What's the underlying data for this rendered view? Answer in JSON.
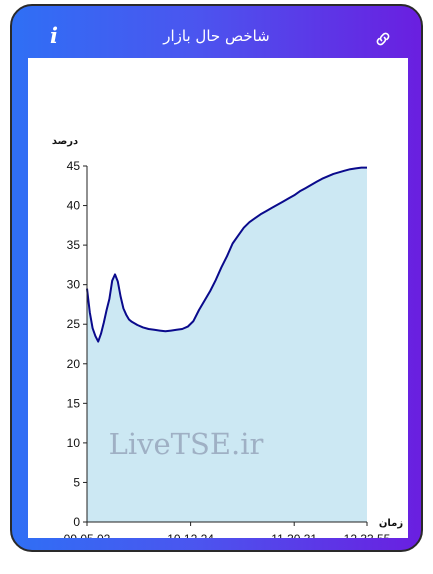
{
  "header": {
    "title": "شاخص حال بازار",
    "info_icon": "info-icon",
    "info_glyph": "i",
    "link_icon": "link-icon"
  },
  "colors": {
    "header_gradient_start": "#2f6ff5",
    "header_gradient_end": "#6a1fe0",
    "line": "#0a0a8c",
    "area_fill": "#cce8f3",
    "axis": "#222222"
  },
  "watermark": "LiveTSE.ir",
  "chart_data": {
    "type": "area",
    "ylabel": "درصد",
    "xlabel": "زمان",
    "ylim": [
      0,
      45
    ],
    "y_ticks": [
      0,
      5,
      10,
      15,
      20,
      25,
      30,
      35,
      40,
      45
    ],
    "x_tick_labels": [
      "09.05.02",
      "10.12.24",
      "11.30.31",
      "12.33.55"
    ],
    "x_tick_positions": [
      0,
      0.37,
      0.74,
      1.0
    ],
    "grid": false,
    "series": [
      {
        "x": [
          0,
          0.01,
          0.02,
          0.03,
          0.04,
          0.05,
          0.06,
          0.07,
          0.08,
          0.09,
          0.1,
          0.11,
          0.12,
          0.13,
          0.14,
          0.15,
          0.16,
          0.17,
          0.18,
          0.2,
          0.22,
          0.24,
          0.26,
          0.28,
          0.3,
          0.32,
          0.34,
          0.36,
          0.38,
          0.4,
          0.42,
          0.44,
          0.46,
          0.48,
          0.5,
          0.52,
          0.54,
          0.56,
          0.58,
          0.6,
          0.62,
          0.64,
          0.66,
          0.68,
          0.7,
          0.72,
          0.74,
          0.76,
          0.78,
          0.8,
          0.82,
          0.84,
          0.86,
          0.88,
          0.9,
          0.92,
          0.94,
          0.96,
          0.98,
          1.0
        ],
        "y": [
          29.5,
          26.5,
          24.5,
          23.5,
          22.8,
          23.8,
          25.2,
          26.8,
          28.2,
          30.5,
          31.3,
          30.4,
          28.5,
          27.0,
          26.2,
          25.6,
          25.3,
          25.1,
          24.9,
          24.6,
          24.4,
          24.3,
          24.2,
          24.1,
          24.2,
          24.3,
          24.4,
          24.7,
          25.4,
          26.8,
          28.0,
          29.2,
          30.6,
          32.2,
          33.6,
          35.2,
          36.2,
          37.2,
          37.9,
          38.4,
          38.9,
          39.3,
          39.7,
          40.1,
          40.5,
          40.9,
          41.3,
          41.8,
          42.2,
          42.6,
          43.0,
          43.4,
          43.7,
          44.0,
          44.2,
          44.4,
          44.6,
          44.7,
          44.8,
          44.8
        ]
      }
    ]
  }
}
